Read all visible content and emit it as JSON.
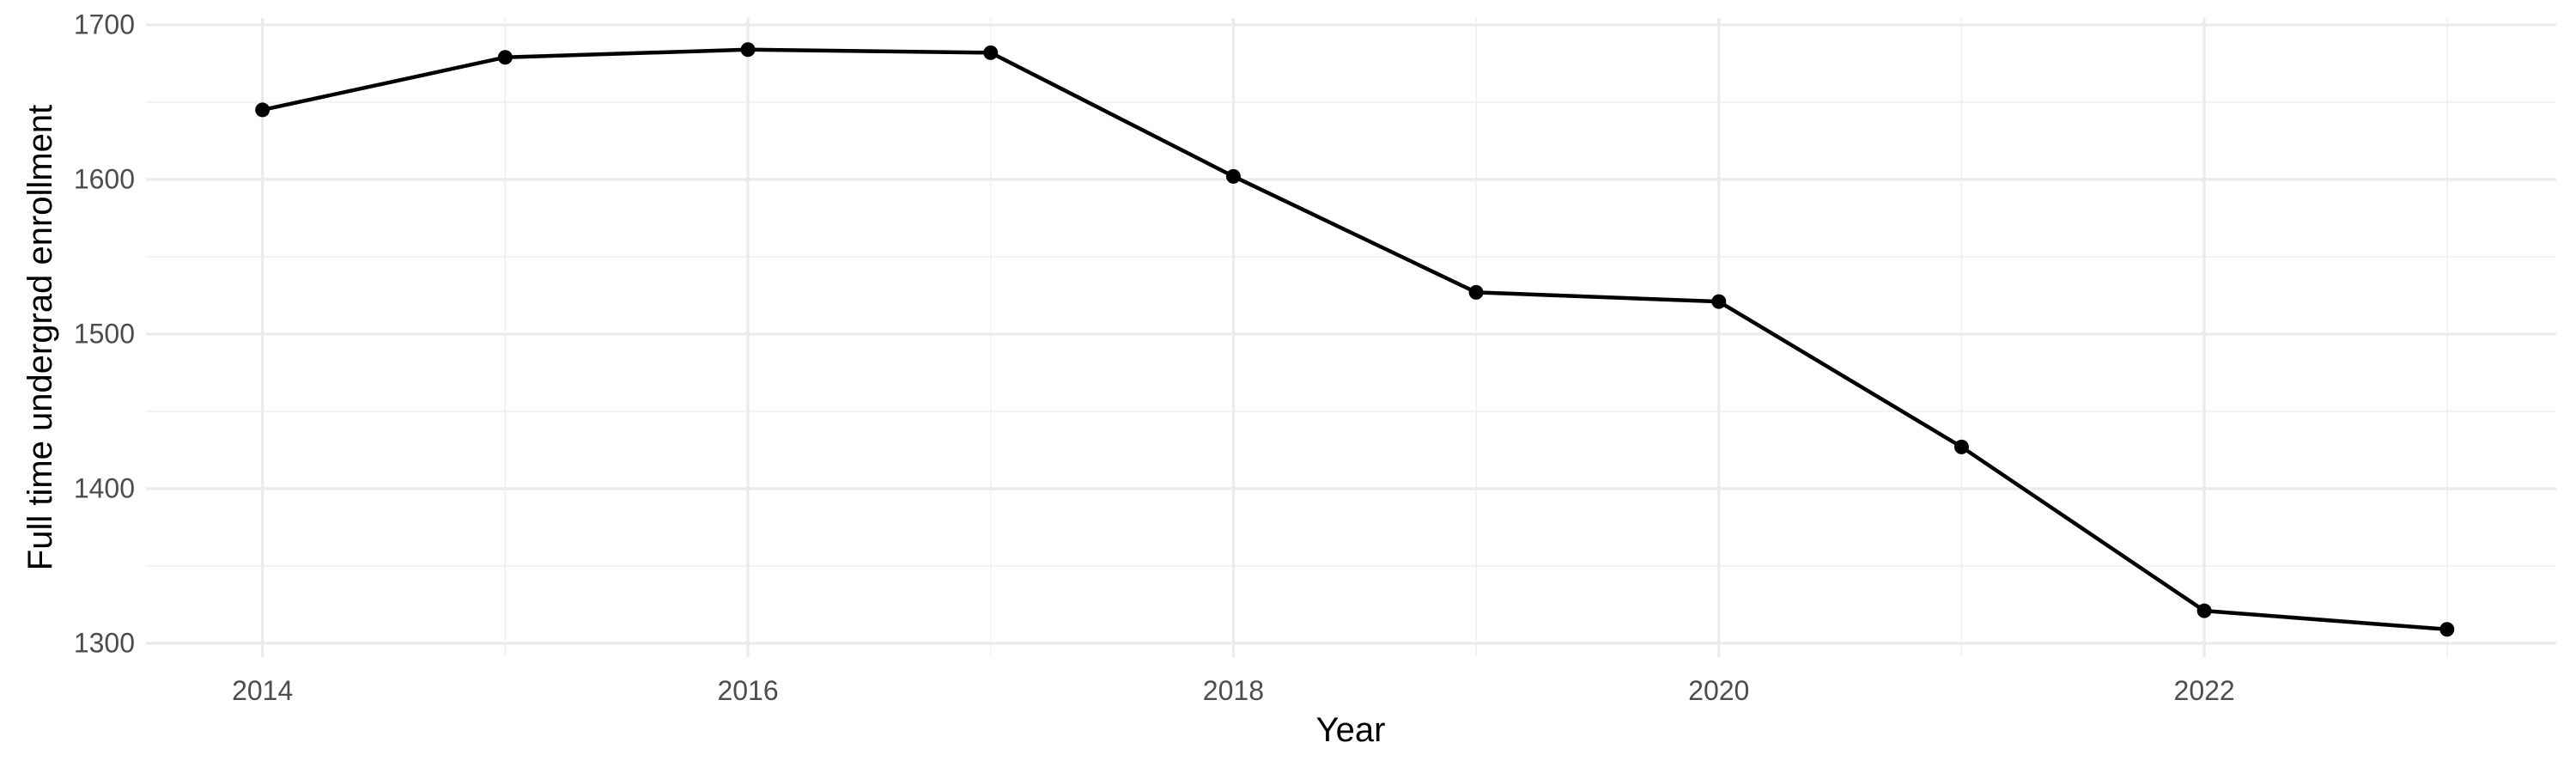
{
  "chart_data": {
    "type": "line",
    "title": "",
    "xlabel": "Year",
    "ylabel": "Full time undergrad enrollment",
    "x": [
      2014,
      2015,
      2016,
      2017,
      2018,
      2019,
      2020,
      2021,
      2022,
      2023
    ],
    "series": [
      {
        "name": "Full time undergrad enrollment",
        "values": [
          1645,
          1679,
          1684,
          1682,
          1602,
          1527,
          1521,
          1427,
          1321,
          1309
        ]
      }
    ],
    "xlim": [
      2013.52,
      2023.45
    ],
    "ylim": [
      1291.1,
      1704.4
    ],
    "x_ticks_major": [
      2014,
      2016,
      2018,
      2020,
      2022
    ],
    "x_ticks_minor": [
      2015,
      2017,
      2019,
      2021,
      2023
    ],
    "y_ticks_major": [
      1300,
      1400,
      1500,
      1600,
      1700
    ],
    "y_ticks_minor": [
      1350,
      1450,
      1550,
      1650
    ],
    "grid": "major+minor",
    "legend": "none",
    "colors": {
      "background": "#FFFFFF",
      "line": "#000000",
      "point": "#000000",
      "grid_major": "#EBEBEB",
      "grid_minor": "#F0F0F0",
      "tick_label": "#4D4D4D",
      "axis_title": "#000000"
    }
  }
}
